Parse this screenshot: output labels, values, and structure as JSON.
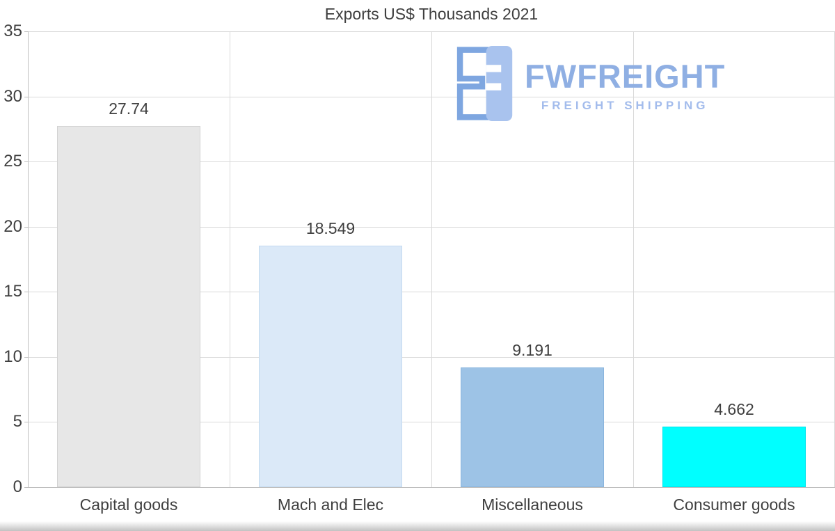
{
  "title": "Exports US$ Thousands 2021",
  "watermark": {
    "brand": "FWFREIGHT",
    "tagline": "FREIGHT SHIPPING",
    "brand_color": "#8fafe3",
    "tagline_color": "#a3bcec",
    "logo_fill_color": "#a9c3ee",
    "logo_outline_color": "#7ea6e0"
  },
  "chart_data": {
    "type": "bar",
    "title": "Exports US$ Thousands 2021",
    "categories": [
      "Capital goods",
      "Mach and Elec",
      "Miscellaneous",
      "Consumer goods"
    ],
    "values": [
      27.74,
      18.549,
      9.191,
      4.662
    ],
    "value_labels": [
      "27.74",
      "18.549",
      "9.191",
      "4.662"
    ],
    "bar_colors": [
      "#e7e7e7",
      "#dbe9f8",
      "#9dc3e6",
      "#00ffff"
    ],
    "bar_border_colors": [
      "#d2d2d2",
      "#c3daf0",
      "#89b4dd",
      "#00e4ec"
    ],
    "xlabel": "",
    "ylabel": "",
    "ylim": [
      0,
      35
    ],
    "yticks": [
      0,
      5,
      10,
      15,
      20,
      25,
      30,
      35
    ],
    "grid": true,
    "legend_position": "none"
  },
  "axis_style": {
    "text_color": "#3f3f3f",
    "grid_color": "#d9d9d9",
    "axis_color": "#bfbfbf"
  }
}
